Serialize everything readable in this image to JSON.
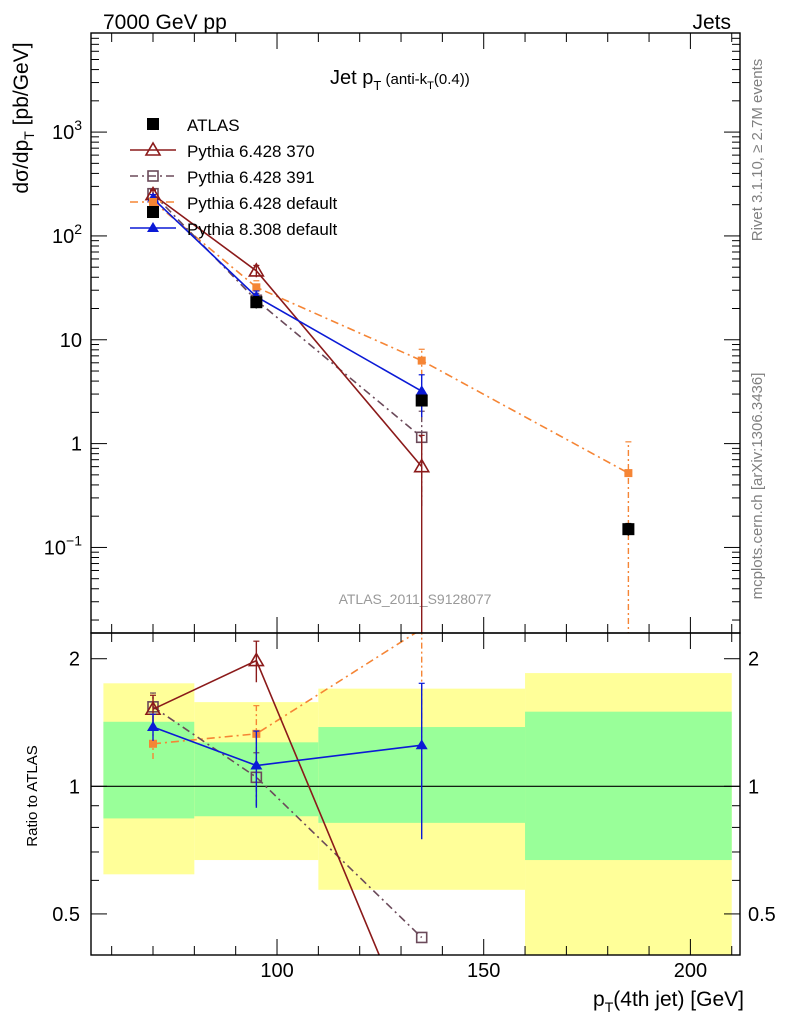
{
  "header": {
    "left": "7000 GeV pp",
    "right": "Jets"
  },
  "title": {
    "main": "Jet p",
    "sub": "T",
    "paren_a": "(anti-k",
    "paren_sub": "T",
    "paren_b": "(0.4))"
  },
  "side_labels": {
    "top": "Rivet 3.1.10, ≥ 2.7M events",
    "bottom": "mcplots.cern.ch [arXiv:1306.3436]"
  },
  "watermark": "ATLAS_2011_S9128077",
  "colors": {
    "atlas": "#000000",
    "p370": "#8b1a1a",
    "p391": "#6b4a5a",
    "pdef": "#f58535",
    "p8": "#0b1ad6",
    "band_yellow": "#ffff99",
    "band_green": "#99ff99"
  },
  "chart_data": [
    {
      "type": "line",
      "panel": "main",
      "ylabel_parts": [
        "dσ/dp",
        "T",
        " [pb/GeV]"
      ],
      "xlim": [
        55,
        212
      ],
      "ylim": [
        0.015,
        9000
      ],
      "yscale": "log",
      "ytick_labels": [
        {
          "v": 1000,
          "base": "10",
          "exp": "3"
        },
        {
          "v": 100,
          "base": "10",
          "exp": "2"
        },
        {
          "v": 10,
          "base": "10",
          "exp": ""
        },
        {
          "v": 1,
          "base": "1",
          "exp": ""
        },
        {
          "v": 0.1,
          "base": "10",
          "exp": "−1"
        }
      ],
      "legend_position": "top-left",
      "series": [
        {
          "name": "ATLAS",
          "key": "atlas",
          "x": [
            70,
            95,
            135,
            185
          ],
          "y": [
            170,
            23,
            2.6,
            0.15
          ],
          "err": [
            18,
            3,
            0.3,
            0.02
          ]
        },
        {
          "name": "Pythia 6.428 370",
          "key": "p370",
          "x": [
            70,
            95,
            135
          ],
          "y": [
            250,
            46,
            0.6
          ],
          "err": [
            25,
            6,
            0.6
          ]
        },
        {
          "name": "Pythia 6.428 391",
          "key": "p391",
          "x": [
            70,
            95,
            135
          ],
          "y": [
            255,
            24,
            1.15
          ],
          "err": [
            25,
            4,
            0.9
          ]
        },
        {
          "name": "Pythia 6.428 default",
          "key": "pdef",
          "x": [
            70,
            95,
            135,
            185
          ],
          "y": [
            215,
            32,
            6.3,
            0.52
          ],
          "err": [
            22,
            5,
            1.8,
            0.52
          ]
        },
        {
          "name": "Pythia 8.308 default",
          "key": "p8",
          "x": [
            70,
            95,
            135
          ],
          "y": [
            230,
            26,
            3.2
          ],
          "err": [
            20,
            3.5,
            1.4
          ]
        }
      ]
    },
    {
      "type": "line",
      "panel": "ratio",
      "ylabel": "Ratio to ATLAS",
      "xlabel_parts": [
        "p",
        "T",
        "(4th jet) [GeV]"
      ],
      "xlim": [
        55,
        212
      ],
      "ylim": [
        0.4,
        2.3
      ],
      "yscale": "log",
      "xticks": [
        100,
        150,
        200
      ],
      "ytick_labels": [
        {
          "v": 2,
          "label": "2"
        },
        {
          "v": 1,
          "label": "1"
        },
        {
          "v": 0.5,
          "label": "0.5"
        }
      ],
      "bands": [
        {
          "x0": 58,
          "x1": 80,
          "y_lo": 0.62,
          "y_hi": 1.75,
          "g_lo": 0.84,
          "g_hi": 1.42
        },
        {
          "x0": 80,
          "x1": 110,
          "y_lo": 0.67,
          "y_hi": 1.58,
          "g_lo": 0.85,
          "g_hi": 1.27
        },
        {
          "x0": 110,
          "x1": 160,
          "y_lo": 0.57,
          "y_hi": 1.7,
          "g_lo": 0.82,
          "g_hi": 1.38
        },
        {
          "x0": 160,
          "x1": 210,
          "y_lo": 0.3,
          "y_hi": 1.85,
          "g_lo": 0.67,
          "g_hi": 1.5
        }
      ],
      "series": [
        {
          "key": "p370",
          "x": [
            70,
            95,
            135
          ],
          "y": [
            1.52,
            1.98,
            0.23
          ],
          "err": [
            0.12,
            0.22,
            0
          ]
        },
        {
          "key": "p391",
          "x": [
            70,
            95,
            135
          ],
          "y": [
            1.54,
            1.05,
            0.44
          ],
          "err": [
            0.12,
            0.15,
            0
          ]
        },
        {
          "key": "pdef",
          "x": [
            70,
            95,
            135,
            185
          ],
          "y": [
            1.26,
            1.33,
            2.35,
            3.5
          ],
          "err": [
            0.1,
            0.22,
            1.2,
            0
          ]
        },
        {
          "key": "p8",
          "x": [
            70,
            95,
            135
          ],
          "y": [
            1.38,
            1.12,
            1.25
          ],
          "err": [
            0.1,
            0.23,
            0.5
          ]
        }
      ]
    }
  ]
}
